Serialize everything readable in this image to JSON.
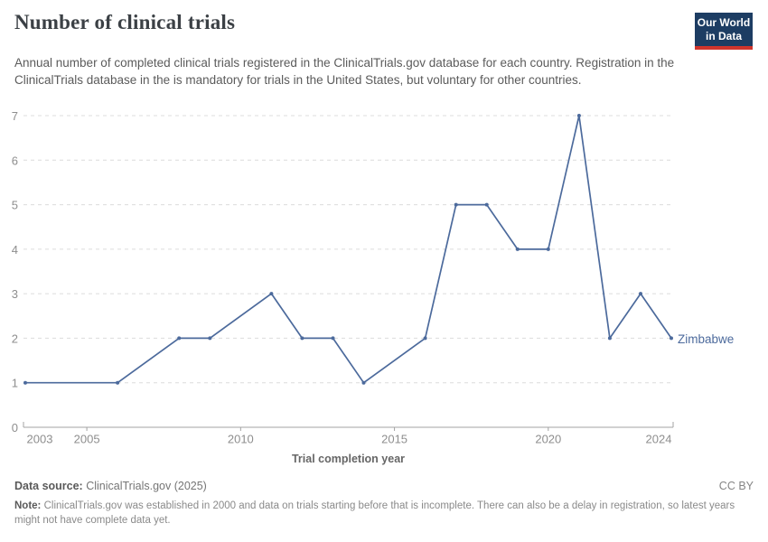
{
  "header": {
    "title": "Number of clinical trials",
    "subtitle": "Annual number of completed clinical trials registered in the ClinicalTrials.gov database for each country. Registration in the ClinicalTrials database in the is mandatory for trials in the United States, but voluntary for other countries.",
    "logo": {
      "line1": "Our World",
      "line2": "in Data"
    }
  },
  "chart_data": {
    "type": "line",
    "title": "Number of clinical trials",
    "xlabel": "Trial completion year",
    "ylabel": "",
    "xlim": [
      2003,
      2024
    ],
    "ylim": [
      0,
      7
    ],
    "x_ticks": [
      2003,
      2005,
      2010,
      2015,
      2020,
      2024
    ],
    "y_ticks": [
      0,
      1,
      2,
      3,
      4,
      5,
      6,
      7
    ],
    "grid": "dashed-horizontal",
    "legend_position": "end-of-line",
    "series": [
      {
        "name": "Zimbabwe",
        "color": "#4c6a9c",
        "points": [
          [
            2003,
            1
          ],
          [
            2006,
            1
          ],
          [
            2008,
            2
          ],
          [
            2009,
            2
          ],
          [
            2011,
            3
          ],
          [
            2012,
            2
          ],
          [
            2013,
            2
          ],
          [
            2014,
            1
          ],
          [
            2016,
            2
          ],
          [
            2017,
            5
          ],
          [
            2018,
            5
          ],
          [
            2019,
            4
          ],
          [
            2020,
            4
          ],
          [
            2021,
            7
          ],
          [
            2022,
            2
          ],
          [
            2023,
            3
          ],
          [
            2024,
            2
          ]
        ]
      }
    ]
  },
  "footer": {
    "source_label": "Data source:",
    "source_value": "ClinicalTrials.gov (2025)",
    "license": "CC BY",
    "note_label": "Note:",
    "note_text": "ClinicalTrials.gov was established in 2000 and data on trials starting before that is incomplete. There can also be a delay in registration, so latest years might not have complete data yet."
  },
  "colors": {
    "line": "#4c6a9c",
    "logo_bg": "#1d3d63",
    "logo_red": "#d0352c",
    "grid": "#dcdcdc",
    "axis": "#a3a3a3",
    "tick_label": "#8e8e8e",
    "axis_title": "#666666",
    "title": "#3b4045",
    "subtitle": "#5b5b5b"
  }
}
